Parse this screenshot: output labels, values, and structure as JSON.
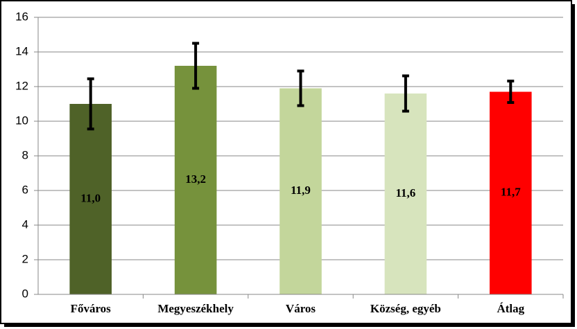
{
  "chart_data": {
    "type": "bar",
    "categories": [
      "Főváros",
      "Megyeszékhely",
      "Város",
      "Község, egyéb",
      "Átlag"
    ],
    "values": [
      11.0,
      13.2,
      11.9,
      11.6,
      11.7
    ],
    "value_labels": [
      "11,0",
      "13,2",
      "11,9",
      "11,6",
      "11,7"
    ],
    "errors": [
      1.45,
      1.3,
      1.0,
      1.02,
      0.62
    ],
    "colors": [
      "#4f6228",
      "#76923c",
      "#c3d69b",
      "#d7e4bd",
      "#ff0000"
    ],
    "ylim": [
      0,
      16
    ],
    "yticks": [
      0,
      2,
      4,
      6,
      8,
      10,
      12,
      14,
      16
    ],
    "grid": true
  }
}
